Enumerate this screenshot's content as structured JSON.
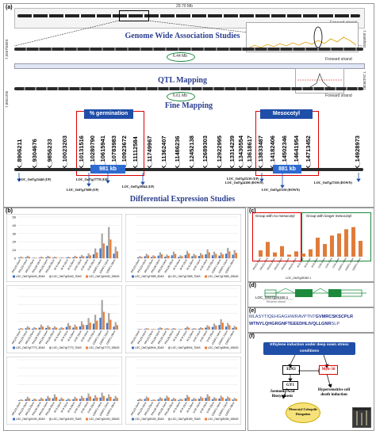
{
  "panel_a": {
    "tag": "(a)",
    "gwas_title": "Genome Wide Association Studies",
    "qtl_title": "QTL Mapping",
    "fine_title": "Fine Mapping",
    "diff_title": "Differential Expression Studies",
    "scale_top": "29.70 Mb",
    "scale_mid1": "6.44 Mb",
    "scale_mid2": "6.61 Mb",
    "strand": "Forward strand",
    "coord_left1": "7,5507f480S",
    "coord_right1": "7,5505f892",
    "coord_left2": "7,8851295",
    "coord_right2": "7,15438381",
    "germination_label": "% germination",
    "mesocotyl_label": "Mesocotyl elongation",
    "region1_size": "981 kb",
    "region2_size": "881 kb",
    "markers_left": [
      "K_8906211",
      "K_9304676",
      "K_9856233",
      "K_10023203"
    ],
    "markers_box1": [
      "K_10131516",
      "K_10280790",
      "K_10615941",
      "K_10783983",
      "K_10923672",
      "K_11112584"
    ],
    "markers_mid": [
      "K_11749967",
      "K_11362407",
      "K_11486236",
      "K_12452138",
      "K_12689303",
      "K_12922995"
    ],
    "markers_mid2": [
      "K_13314239",
      "K_13430554",
      "K_13618617"
    ],
    "markers_box2": [
      "K_13833487",
      "K_14182406",
      "K_14502346",
      "K_14641954",
      "K_14713452"
    ],
    "markers_right": [
      "K_14928973"
    ],
    "genes": [
      "LOC_Os07g15440 (UP)",
      "LOC_Os07g17770 (UP)",
      "LOC_Os07g17689 (UP)",
      "LOC_Os07g18944 (UP)",
      "LOC_Os07g25210 (UP)",
      "LOC_Os07g24100 (DOWN)",
      "LOC_Os07g25150 (DOWN)",
      "LOC_Os07g27350 (DOWN)"
    ]
  },
  "panel_b": {
    "tag": "(b)",
    "categories": [
      "PR123-10cm",
      "PR123-15cm",
      "PR123-20cm",
      "PR126-10cm",
      "PR126-15cm",
      "PR126-20cm",
      "IR 8-10cm",
      "IR 8-15cm",
      "IR 8-20cm",
      "SYR-10cm",
      "SYR-15cm",
      "SYR-20cm",
      "DSRF1-10cm",
      "DSRF1-15cm",
      "DSRF1-20cm"
    ],
    "ymax": 50,
    "yticks": [
      "0",
      "10",
      "20",
      "30",
      "40",
      "50"
    ],
    "charts": [
      {
        "legend": [
          "LOC_Os07g15440_3DAS",
          "LOC_Os07g15440_7DAS",
          "LOC_Os07g15440_15DAS"
        ]
      },
      {
        "legend": [
          "LOC_Os07g17689_3DAS",
          "LOC_Os07g17689_7DAS",
          "LOC_Os07g17689_15DAS"
        ]
      },
      {
        "legend": [
          "LOC_Os07g17770_3DAS",
          "LOC_Os07g17770_7DAS",
          "LOC_Os07g17770_15DAS"
        ]
      },
      {
        "legend": [
          "LOC_Os07g18944_3DAS",
          "LOC_Os07g18944_7DAS",
          "LOC_Os07g18944_15DAS"
        ]
      },
      {
        "legend": [
          "LOC_Os07g24100_3DAS",
          "LOC_Os07g24100_7DAS",
          "LOC_Os07g24100_15DAS"
        ]
      },
      {
        "legend": [
          "LOC_Os07g25150_3DAS",
          "LOC_Os07g25150_7DAS",
          "LOC_Os07g25150_15DAS"
        ]
      }
    ],
    "series_colors": [
      "#4472c4",
      "#a5a5a5",
      "#ed7d31"
    ]
  },
  "panel_c": {
    "tag": "(c)",
    "group1": "Group with no mesocotyl",
    "group2": "Group with longer mesocotyl",
    "legend": "LOC_Os07g25150.1"
  },
  "panel_d": {
    "tag": "(d)",
    "label": "LOC_Os07g25150.1",
    "strand": "Reverse strand"
  },
  "panel_e": {
    "tag": "(e)",
    "seq_line1_plain": "MLASYTIQEHGAGHWRAVPTNT",
    "seq_line1_bold": "GVMRCSKSCPLR",
    "seq_line2_bold": "WTNYLQHGRGNFTEEEDHLIVQLLGNR",
    "seq_line2_plain": "SLP"
  },
  "panel_f": {
    "tag": "(f)",
    "header": "Ethylene induction under deep sown stress conditions",
    "ein3": "EIN3",
    "myb": "Myb-36",
    "gy1": "GY1",
    "jasmonic": "Jasmonic Acid Biosynthesis",
    "hypersensitive": "Hypersensitive cell death induction",
    "outcome": "Mesocotyl Coleoptile Elongation"
  }
}
